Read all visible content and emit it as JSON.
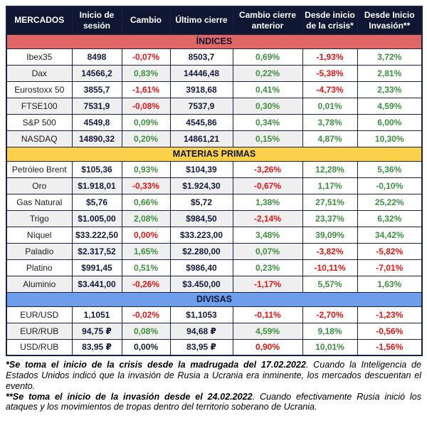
{
  "colors": {
    "navy_text": "#141a3c",
    "red_text": "#ed1515",
    "green_text": "#3d9140",
    "stripe_bg": "#efefef",
    "border": "#1b2142",
    "header_bg": "#101733",
    "indices_band": "#e06666",
    "materias_band": "#fbd04b",
    "divisas_band": "#6d9eeb"
  },
  "chart_data": {
    "type": "table",
    "columns": [
      "MERCADOS",
      "Inicio de sesión",
      "Cambio",
      "Último cierre",
      "Cambio cierre anterior",
      "Desde inicio de la crisis*",
      "Desde Inicio Invasión**"
    ],
    "sections": [
      {
        "key": "indices",
        "title": "ÍNDICES",
        "band_color": "#e06666",
        "rows": [
          {
            "label": "Ibex35",
            "values": [
              [
                "8498",
                "n"
              ],
              [
                "-0,07%",
                "r"
              ],
              [
                "8503,7",
                "n"
              ],
              [
                "0,69%",
                "g"
              ],
              [
                "-1,93%",
                "r"
              ],
              [
                "3,72%",
                "g"
              ]
            ]
          },
          {
            "label": "Dax",
            "values": [
              [
                "14566,2",
                "n"
              ],
              [
                "0,83%",
                "g"
              ],
              [
                "14446,48",
                "n"
              ],
              [
                "0,22%",
                "g"
              ],
              [
                "-5,38%",
                "r"
              ],
              [
                "2,81%",
                "g"
              ]
            ]
          },
          {
            "label": "Eurostoxx 50",
            "values": [
              [
                "3855,7",
                "n"
              ],
              [
                "-1,61%",
                "r"
              ],
              [
                "3918,68",
                "n"
              ],
              [
                "0,41%",
                "g"
              ],
              [
                "-4,73%",
                "r"
              ],
              [
                "2,33%",
                "g"
              ]
            ]
          },
          {
            "label": "FTSE100",
            "values": [
              [
                "7531,9",
                "n"
              ],
              [
                "-0,08%",
                "r"
              ],
              [
                "7537,9",
                "n"
              ],
              [
                "0,30%",
                "g"
              ],
              [
                "0,01%",
                "g"
              ],
              [
                "4,59%",
                "g"
              ]
            ]
          },
          {
            "label": "S&P 500",
            "values": [
              [
                "4549,8",
                "n"
              ],
              [
                "0,09%",
                "g"
              ],
              [
                "4545,86",
                "n"
              ],
              [
                "0,34%",
                "g"
              ],
              [
                "3,78%",
                "g"
              ],
              [
                "6,00%",
                "g"
              ]
            ]
          },
          {
            "label": "NASDAQ",
            "values": [
              [
                "14890,32",
                "n"
              ],
              [
                "0,20%",
                "g"
              ],
              [
                "14861,21",
                "n"
              ],
              [
                "0,15%",
                "g"
              ],
              [
                "4,87%",
                "g"
              ],
              [
                "10,30%",
                "g"
              ]
            ]
          }
        ]
      },
      {
        "key": "materias-primas",
        "title": "MATERIAS PRIMAS",
        "band_color": "#fbd04b",
        "rows": [
          {
            "label": "Petróleo Brent",
            "values": [
              [
                "$105,36",
                "n"
              ],
              [
                "0,93%",
                "g"
              ],
              [
                "$104,39",
                "n"
              ],
              [
                "-3,26%",
                "r"
              ],
              [
                "12,28%",
                "g"
              ],
              [
                "5,36%",
                "g"
              ]
            ]
          },
          {
            "label": "Oro",
            "values": [
              [
                "$1.918,01",
                "n"
              ],
              [
                "-0,33%",
                "r"
              ],
              [
                "$1.924,30",
                "n"
              ],
              [
                "-0,67%",
                "r"
              ],
              [
                "1,17%",
                "g"
              ],
              [
                "-0,10%",
                "g"
              ]
            ]
          },
          {
            "label": "Gas Natural",
            "values": [
              [
                "$5,76",
                "n"
              ],
              [
                "0,66%",
                "g"
              ],
              [
                "$5,72",
                "n"
              ],
              [
                "1,38%",
                "g"
              ],
              [
                "27,51%",
                "g"
              ],
              [
                "25,22%",
                "g"
              ]
            ]
          },
          {
            "label": "Trigo",
            "values": [
              [
                "$1.005,00",
                "n"
              ],
              [
                "2,08%",
                "g"
              ],
              [
                "$984,50",
                "n"
              ],
              [
                "-2,14%",
                "r"
              ],
              [
                "23,37%",
                "g"
              ],
              [
                "6,32%",
                "g"
              ]
            ]
          },
          {
            "label": "Níquel",
            "values": [
              [
                "$33.222,50",
                "n"
              ],
              [
                "0,00%",
                "r"
              ],
              [
                "$33.223,00",
                "n"
              ],
              [
                "3,48%",
                "g"
              ],
              [
                "39,09%",
                "g"
              ],
              [
                "34,42%",
                "g"
              ]
            ]
          },
          {
            "label": "Paladio",
            "values": [
              [
                "$2.317,52",
                "n"
              ],
              [
                "1,65%",
                "g"
              ],
              [
                "$2.280,00",
                "n"
              ],
              [
                "0,07%",
                "g"
              ],
              [
                "-3,82%",
                "r"
              ],
              [
                "-5,82%",
                "r"
              ]
            ]
          },
          {
            "label": "Platino",
            "values": [
              [
                "$991,45",
                "n"
              ],
              [
                "0,51%",
                "g"
              ],
              [
                "$986,40",
                "n"
              ],
              [
                "0,23%",
                "g"
              ],
              [
                "-10,11%",
                "r"
              ],
              [
                "-7,01%",
                "r"
              ]
            ]
          },
          {
            "label": "Aluminio",
            "values": [
              [
                "$3.441,00",
                "n"
              ],
              [
                "-0,26%",
                "r"
              ],
              [
                "$3.450,00",
                "n"
              ],
              [
                "-1,17%",
                "r"
              ],
              [
                "5,57%",
                "g"
              ],
              [
                "1,63%",
                "g"
              ]
            ]
          }
        ]
      },
      {
        "key": "divisas",
        "title": "DIVISAS",
        "band_color": "#6d9eeb",
        "rows": [
          {
            "label": "EUR/USD",
            "values": [
              [
                "1,1051",
                "n"
              ],
              [
                "-0,02%",
                "r"
              ],
              [
                "$1,1053",
                "n"
              ],
              [
                "-0,11%",
                "r"
              ],
              [
                "-2,70%",
                "r"
              ],
              [
                "-1,23%",
                "r"
              ]
            ]
          },
          {
            "label": "EUR/RUB",
            "values": [
              [
                "94,75 ₽",
                "n"
              ],
              [
                "0,08%",
                "g"
              ],
              [
                "94,68 ₽",
                "n"
              ],
              [
                "4,59%",
                "g"
              ],
              [
                "9,18%",
                "g"
              ],
              [
                "-0,56%",
                "r"
              ]
            ]
          },
          {
            "label": "USD/RUB",
            "values": [
              [
                "83,95 ₽",
                "n"
              ],
              [
                "0,00%",
                "n"
              ],
              [
                "83,95 ₽",
                "n"
              ],
              [
                "0,90%",
                "r"
              ],
              [
                "10,01%",
                "g"
              ],
              [
                "-1,56%",
                "r"
              ]
            ]
          }
        ]
      }
    ]
  },
  "footnotes": [
    {
      "lead": "*Se toma el inicio de la crisis desde la madrugada del 17.02.2022",
      "rest": ". Cuando la Inteligencia de Estados Unidos indicó que la invasión de Rusia a Ucrania era inminente, los mercados descuentan el evento."
    },
    {
      "lead": "**Se toma el inicio de la invasión desde el 24.02.2022",
      "rest": ". Cuando efectivamente Rusia inició los ataques y los movimientos de tropas dentro del territorio soberano de Ucrania."
    }
  ]
}
